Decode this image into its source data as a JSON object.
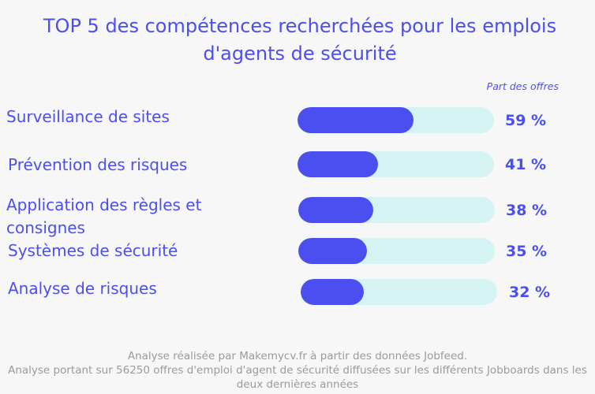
{
  "chart_data": {
    "type": "bar",
    "title": "TOP 5 des compétences recherchées pour les emplois d'agents de sécurité",
    "column_header": "Part des offres",
    "categories": [
      "Surveillance de sites",
      "Prévention des risques",
      "Application des règles et consignes",
      "Systèmes de sécurité",
      "Analyse de risques"
    ],
    "values": [
      59,
      41,
      38,
      35,
      32
    ],
    "value_labels": [
      "59 %",
      "41 %",
      "38 %",
      "35 %",
      "32 %"
    ],
    "unit": "%",
    "xlim": [
      0,
      100
    ],
    "orientation": "horizontal",
    "colors": {
      "fill": "#4b4ff0",
      "track": "#d5f3f3",
      "text": "#4b4ff0"
    }
  },
  "footer": {
    "line1": "Analyse réalisée par Makemycv.fr à partir des données Jobfeed.",
    "line2": "Analyse portant sur 56250 offres d'emploi d'agent de sécurité diffusées sur les différents Jobboards dans les deux dernières années"
  }
}
